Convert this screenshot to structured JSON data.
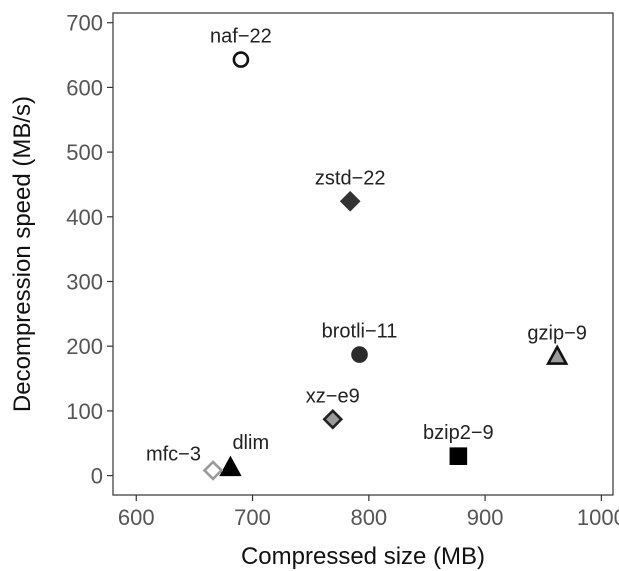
{
  "chart_data": {
    "type": "scatter",
    "xlabel": "Compressed size (MB)",
    "ylabel": "Decompression speed (MB/s)",
    "xlim": [
      580,
      1010
    ],
    "ylim": [
      -30,
      715
    ],
    "xticks": [
      600,
      700,
      800,
      900,
      1000
    ],
    "yticks": [
      0,
      100,
      200,
      300,
      400,
      500,
      600,
      700
    ],
    "grid": false,
    "legend": "none",
    "points": [
      {
        "label": "naf−22",
        "x": 690,
        "y": 643,
        "shape": "circle",
        "fill": "#ffffff",
        "stroke": "#111111",
        "label_pos": "above"
      },
      {
        "label": "zstd−22",
        "x": 784,
        "y": 424,
        "shape": "diamond",
        "fill": "#333333",
        "stroke": "#333333",
        "label_pos": "above"
      },
      {
        "label": "brotli−11",
        "x": 792,
        "y": 187,
        "shape": "circle",
        "fill": "#2b2b2b",
        "stroke": "#2b2b2b",
        "label_pos": "above"
      },
      {
        "label": "gzip−9",
        "x": 962,
        "y": 184,
        "shape": "triangle",
        "fill": "#9a9a9a",
        "stroke": "#111111",
        "label_pos": "above"
      },
      {
        "label": "xz−e9",
        "x": 769,
        "y": 87,
        "shape": "diamond",
        "fill": "#9a9a9a",
        "stroke": "#222222",
        "label_pos": "above"
      },
      {
        "label": "bzip2−9",
        "x": 877,
        "y": 30,
        "shape": "square",
        "fill": "#000000",
        "stroke": "#000000",
        "label_pos": "above"
      },
      {
        "label": "dlim",
        "x": 681,
        "y": 12,
        "shape": "triangle",
        "fill": "#000000",
        "stroke": "#000000",
        "label_pos": "above-right"
      },
      {
        "label": "mfc−3",
        "x": 666,
        "y": 8,
        "shape": "diamond",
        "fill": "#ffffff",
        "stroke": "#9a9a9a",
        "label_pos": "above-left"
      }
    ]
  }
}
